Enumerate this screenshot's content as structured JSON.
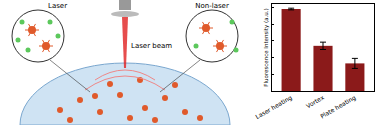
{
  "chart_data": {
    "type": "bar",
    "categories": [
      "Laser heating",
      "Vortex",
      "Plate heating"
    ],
    "values": [
      49,
      27,
      16.5
    ],
    "errors": [
      0.5,
      2.2,
      3
    ],
    "color": "#8b1a1a",
    "y_label": "Fluorescence Intensity (a.u.)",
    "ylim": [
      0,
      52
    ],
    "yticks": [
      0,
      10,
      20,
      30,
      40,
      50
    ],
    "tick_labels": "x",
    "grid": false
  },
  "diagram": {
    "left_label": "Laser",
    "right_label": "Non-laser",
    "beam_label": "Laser beam"
  }
}
